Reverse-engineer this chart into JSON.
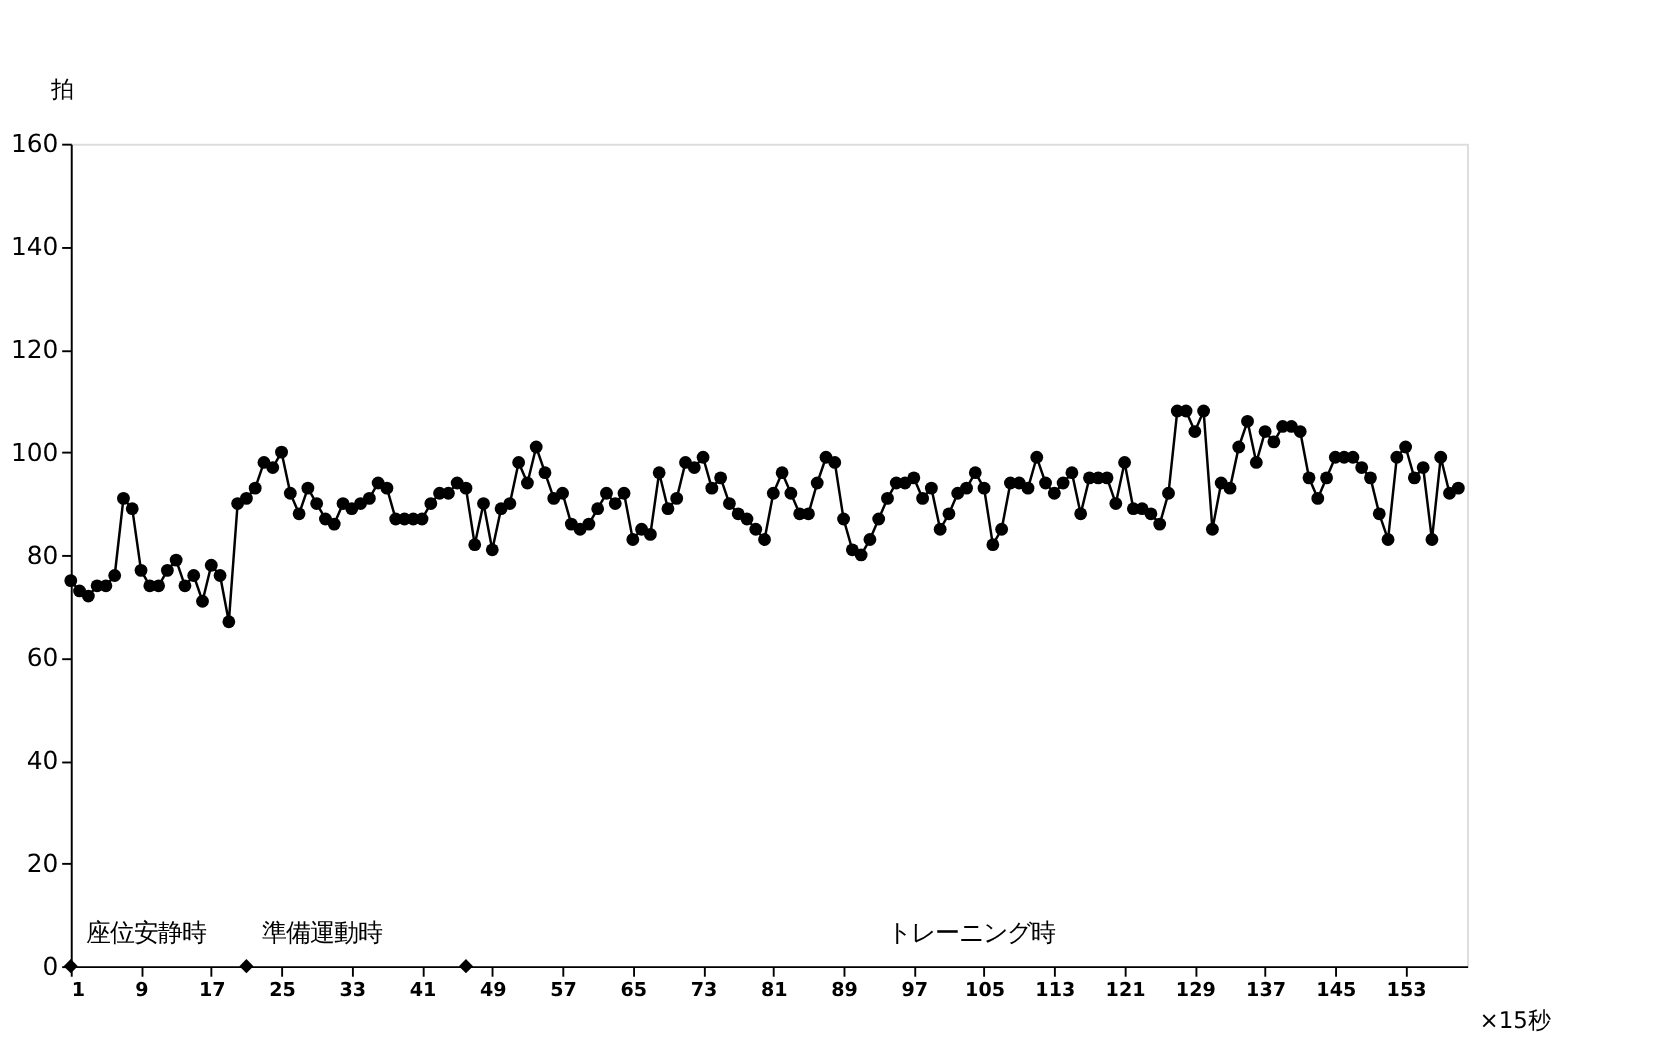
{
  "chart_data": {
    "type": "line",
    "ylabel": "拍",
    "xlabel": "×15秒",
    "xlim": [
      1,
      160
    ],
    "xticks": [
      1,
      9,
      17,
      25,
      33,
      41,
      49,
      57,
      65,
      73,
      81,
      89,
      97,
      105,
      113,
      121,
      129,
      137,
      145,
      153
    ],
    "ylim": [
      0,
      160
    ],
    "yticks": [
      0,
      20,
      40,
      60,
      80,
      100,
      120,
      140,
      160
    ],
    "grid": false,
    "x": [
      1,
      2,
      3,
      4,
      5,
      6,
      7,
      8,
      9,
      10,
      11,
      12,
      13,
      14,
      15,
      16,
      17,
      18,
      19,
      20,
      21,
      22,
      23,
      24,
      25,
      26,
      27,
      28,
      29,
      30,
      31,
      32,
      33,
      34,
      35,
      36,
      37,
      38,
      39,
      40,
      41,
      42,
      43,
      44,
      45,
      46,
      47,
      48,
      49,
      50,
      51,
      52,
      53,
      54,
      55,
      56,
      57,
      58,
      59,
      60,
      61,
      62,
      63,
      64,
      65,
      66,
      67,
      68,
      69,
      70,
      71,
      72,
      73,
      74,
      75,
      76,
      77,
      78,
      79,
      80,
      81,
      82,
      83,
      84,
      85,
      86,
      87,
      88,
      89,
      90,
      91,
      92,
      93,
      94,
      95,
      96,
      97,
      98,
      99,
      100,
      101,
      102,
      103,
      104,
      105,
      106,
      107,
      108,
      109,
      110,
      111,
      112,
      113,
      114,
      115,
      116,
      117,
      118,
      119,
      120,
      121,
      122,
      123,
      124,
      125,
      126,
      127,
      128,
      129,
      130,
      131,
      132,
      133,
      134,
      135,
      136,
      137,
      138,
      139,
      140,
      141,
      142,
      143,
      144,
      145,
      146,
      147,
      148,
      149,
      150,
      151,
      152,
      153,
      154,
      155,
      156,
      157,
      158,
      159
    ],
    "marker": "circle",
    "line_style": "solid",
    "series": [
      {
        "color": "#000000",
        "values": [
          75,
          73,
          72,
          74,
          74,
          76,
          91,
          89,
          77,
          74,
          74,
          77,
          79,
          74,
          76,
          71,
          78,
          76,
          67,
          90,
          91,
          93,
          98,
          97,
          100,
          92,
          88,
          93,
          90,
          87,
          86,
          90,
          89,
          90,
          91,
          94,
          93,
          87,
          87,
          87,
          87,
          90,
          92,
          92,
          94,
          93,
          82,
          90,
          81,
          89,
          90,
          98,
          94,
          101,
          96,
          91,
          92,
          86,
          85,
          86,
          89,
          92,
          90,
          92,
          83,
          85,
          84,
          96,
          89,
          91,
          98,
          97,
          99,
          93,
          95,
          90,
          88,
          87,
          85,
          83,
          92,
          96,
          92,
          88,
          88,
          94,
          99,
          98,
          87,
          81,
          80,
          83,
          87,
          91,
          94,
          94,
          95,
          91,
          93,
          85,
          88,
          92,
          93,
          96,
          93,
          82,
          85,
          94,
          94,
          93,
          99,
          94,
          92,
          94,
          96,
          88,
          95,
          95,
          95,
          90,
          98,
          89,
          89,
          88,
          86,
          92,
          108,
          108,
          104,
          108,
          85,
          94,
          93,
          101,
          106,
          98,
          104,
          102,
          105,
          105,
          104,
          95,
          91,
          95,
          99,
          99,
          99,
          97,
          95,
          88,
          83,
          99,
          101,
          95,
          97,
          83,
          99,
          92,
          93
        ]
      },
      {
        "type": "scatter",
        "marker": "diamond",
        "color": "#000000",
        "x": [
          1,
          21,
          46
        ],
        "values": [
          0,
          0,
          0
        ]
      }
    ],
    "annotations": [
      "座位安静時",
      "準備運動時",
      "トレーニング時"
    ]
  }
}
